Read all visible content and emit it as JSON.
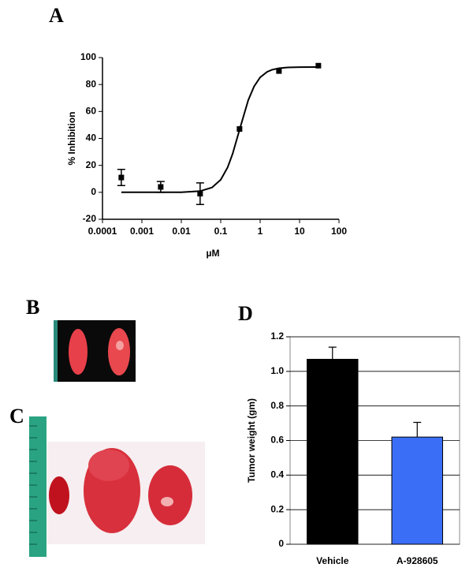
{
  "chart_data": [
    {
      "type": "scatter",
      "panel_label": "A",
      "ylabel": "% Inhibition",
      "xlabel": "µM",
      "x": [
        0.0003,
        0.003,
        0.03,
        0.3,
        3,
        30
      ],
      "values": [
        11,
        4,
        -1,
        47,
        90,
        94
      ],
      "errors": [
        6,
        4,
        8,
        null,
        null,
        null
      ],
      "color": "#000000",
      "fit": {
        "x": [
          0.0003,
          0.01,
          0.03,
          0.06,
          0.1,
          0.15,
          0.2,
          0.3,
          0.5,
          0.7,
          1,
          1.5,
          2,
          3,
          5,
          10,
          30
        ],
        "values": [
          0,
          0.1,
          0.9,
          3.6,
          9.3,
          18.6,
          28.6,
          46.5,
          68.4,
          78.6,
          85.3,
          89.4,
          91.0,
          92.1,
          92.7,
          92.9,
          93.0
        ]
      },
      "xlog": true,
      "xlim": [
        0.0001,
        100
      ],
      "xticks": [
        0.0001,
        0.001,
        0.01,
        0.1,
        1,
        10,
        100
      ],
      "ylim": [
        -20,
        100
      ],
      "yticks": [
        -20,
        0,
        20,
        40,
        60,
        80,
        100
      ]
    },
    {
      "type": "bar",
      "panel_label": "D",
      "ylabel": "Tumor weight (gm)",
      "categories": [
        "Vehicle",
        "A-928605"
      ],
      "values": [
        1.07,
        0.62
      ],
      "errors": [
        0.07,
        0.085
      ],
      "colors": [
        "#000000",
        "#3b6ef6"
      ],
      "ylim": [
        0,
        1.2
      ],
      "yticks": [
        0,
        0.2,
        0.4,
        0.6,
        0.8,
        {
          "value": 1,
          "label": "1.0"
        },
        1.2
      ],
      "grid": true
    }
  ],
  "images": [
    {
      "label": "B"
    },
    {
      "label": "C"
    }
  ]
}
